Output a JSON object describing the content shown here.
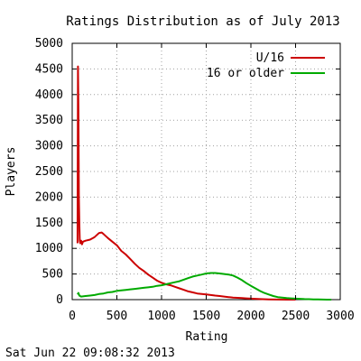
{
  "chart_data": {
    "type": "line",
    "title": "Ratings Distribution as of July 2013",
    "xlabel": "Rating",
    "ylabel": "Players",
    "xlim": [
      0,
      3000
    ],
    "ylim": [
      0,
      5000
    ],
    "x_ticks": [
      0,
      500,
      1000,
      1500,
      2000,
      2500,
      3000
    ],
    "y_ticks": [
      0,
      500,
      1000,
      1500,
      2000,
      2500,
      3000,
      3500,
      4000,
      4500,
      5000
    ],
    "grid": true,
    "grid_style": "dotted",
    "legend_position": "top-right",
    "footer": "Sat Jun 22 09:08:32 2013",
    "series": [
      {
        "name": "U/16",
        "color": "#cc0000",
        "points": [
          [
            60,
            1100
          ],
          [
            65,
            4550
          ],
          [
            70,
            3700
          ],
          [
            75,
            2000
          ],
          [
            80,
            1500
          ],
          [
            85,
            1150
          ],
          [
            90,
            1100
          ],
          [
            100,
            1150
          ],
          [
            110,
            1080
          ],
          [
            120,
            1130
          ],
          [
            150,
            1150
          ],
          [
            200,
            1170
          ],
          [
            250,
            1220
          ],
          [
            300,
            1300
          ],
          [
            330,
            1310
          ],
          [
            350,
            1280
          ],
          [
            400,
            1200
          ],
          [
            450,
            1130
          ],
          [
            500,
            1060
          ],
          [
            550,
            950
          ],
          [
            600,
            880
          ],
          [
            650,
            790
          ],
          [
            700,
            700
          ],
          [
            750,
            620
          ],
          [
            800,
            560
          ],
          [
            850,
            490
          ],
          [
            900,
            430
          ],
          [
            950,
            370
          ],
          [
            1000,
            330
          ],
          [
            1050,
            300
          ],
          [
            1100,
            280
          ],
          [
            1150,
            250
          ],
          [
            1200,
            220
          ],
          [
            1250,
            190
          ],
          [
            1300,
            160
          ],
          [
            1350,
            140
          ],
          [
            1400,
            120
          ],
          [
            1450,
            110
          ],
          [
            1500,
            100
          ],
          [
            1550,
            90
          ],
          [
            1600,
            80
          ],
          [
            1650,
            70
          ],
          [
            1700,
            60
          ],
          [
            1750,
            50
          ],
          [
            1800,
            40
          ],
          [
            1850,
            35
          ],
          [
            1900,
            30
          ],
          [
            1950,
            25
          ],
          [
            2000,
            20
          ],
          [
            2100,
            10
          ],
          [
            2200,
            5
          ],
          [
            2300,
            2
          ],
          [
            2400,
            0
          ],
          [
            2500,
            0
          ]
        ]
      },
      {
        "name": "16 or older",
        "color": "#00aa00",
        "points": [
          [
            60,
            100
          ],
          [
            70,
            130
          ],
          [
            80,
            80
          ],
          [
            100,
            60
          ],
          [
            150,
            70
          ],
          [
            200,
            80
          ],
          [
            250,
            90
          ],
          [
            300,
            110
          ],
          [
            350,
            120
          ],
          [
            400,
            140
          ],
          [
            450,
            150
          ],
          [
            500,
            170
          ],
          [
            550,
            180
          ],
          [
            600,
            190
          ],
          [
            650,
            200
          ],
          [
            700,
            210
          ],
          [
            750,
            220
          ],
          [
            800,
            230
          ],
          [
            850,
            240
          ],
          [
            900,
            250
          ],
          [
            950,
            270
          ],
          [
            1000,
            280
          ],
          [
            1050,
            300
          ],
          [
            1100,
            320
          ],
          [
            1150,
            340
          ],
          [
            1200,
            360
          ],
          [
            1250,
            390
          ],
          [
            1300,
            420
          ],
          [
            1350,
            450
          ],
          [
            1400,
            470
          ],
          [
            1450,
            490
          ],
          [
            1500,
            510
          ],
          [
            1550,
            520
          ],
          [
            1600,
            520
          ],
          [
            1650,
            510
          ],
          [
            1700,
            500
          ],
          [
            1750,
            490
          ],
          [
            1800,
            470
          ],
          [
            1850,
            430
          ],
          [
            1900,
            380
          ],
          [
            1950,
            320
          ],
          [
            2000,
            270
          ],
          [
            2050,
            220
          ],
          [
            2100,
            170
          ],
          [
            2150,
            130
          ],
          [
            2200,
            100
          ],
          [
            2250,
            70
          ],
          [
            2300,
            50
          ],
          [
            2350,
            40
          ],
          [
            2400,
            30
          ],
          [
            2450,
            25
          ],
          [
            2500,
            20
          ],
          [
            2550,
            15
          ],
          [
            2600,
            10
          ],
          [
            2650,
            8
          ],
          [
            2700,
            5
          ],
          [
            2750,
            3
          ],
          [
            2800,
            2
          ],
          [
            2850,
            0
          ],
          [
            2900,
            0
          ]
        ]
      }
    ]
  }
}
